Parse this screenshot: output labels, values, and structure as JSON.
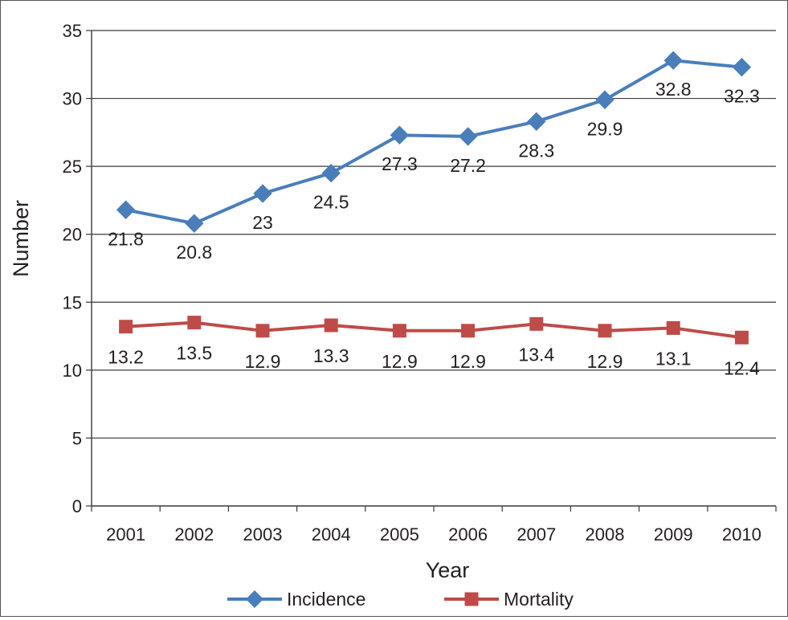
{
  "chart_data": {
    "type": "line",
    "xlabel": "Year",
    "ylabel": "Number",
    "categories": [
      "2001",
      "2002",
      "2003",
      "2004",
      "2005",
      "2006",
      "2007",
      "2008",
      "2009",
      "2010"
    ],
    "ylim": [
      0,
      35
    ],
    "yticks": [
      0,
      5,
      10,
      15,
      20,
      25,
      30,
      35
    ],
    "grid": true,
    "legend_position": "bottom",
    "series": [
      {
        "name": "Incidence",
        "color": "#4a7ebb",
        "marker": "diamond",
        "values": [
          21.8,
          20.8,
          23,
          24.5,
          27.3,
          27.2,
          28.3,
          29.9,
          32.8,
          32.3
        ],
        "labels": [
          "21.8",
          "20.8",
          "23",
          "24.5",
          "27.3",
          "27.2",
          "28.3",
          "29.9",
          "32.8",
          "32.3"
        ]
      },
      {
        "name": "Mortality",
        "color": "#be4b48",
        "marker": "square",
        "values": [
          13.2,
          13.5,
          12.9,
          13.3,
          12.9,
          12.9,
          13.4,
          12.9,
          13.1,
          12.4
        ],
        "labels": [
          "13.2",
          "13.5",
          "12.9",
          "13.3",
          "12.9",
          "12.9",
          "13.4",
          "12.9",
          "13.1",
          "12.4"
        ]
      }
    ]
  }
}
